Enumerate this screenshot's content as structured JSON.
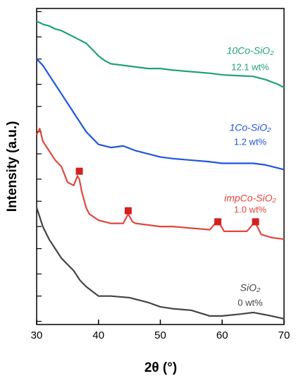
{
  "chart_data": {
    "type": "line",
    "xlabel": "2θ (°)",
    "ylabel": "Intensity (a.u.)",
    "xlim": [
      30,
      70
    ],
    "xticks": [
      30,
      40,
      50,
      60,
      70
    ],
    "ylim": [
      0,
      100
    ],
    "yticks": [
      1,
      9,
      16,
      24,
      31,
      39,
      46,
      54,
      61,
      69,
      76,
      84,
      91,
      99
    ],
    "series": [
      {
        "name": "10Co-SiO₂",
        "label": "12.1 wt%",
        "color": "#1fa372",
        "x": [
          30,
          31,
          32,
          33,
          34,
          35,
          36,
          37,
          38,
          39,
          40,
          41,
          42,
          44,
          46,
          48,
          50,
          52,
          55,
          58,
          60,
          62,
          65,
          67,
          69,
          70
        ],
        "values": [
          96,
          95,
          94.5,
          93.5,
          93,
          92,
          91,
          90,
          89,
          87,
          85,
          83.5,
          82.5,
          82,
          81.5,
          81,
          81,
          80.5,
          80,
          79.5,
          79,
          78.8,
          78.5,
          77.5,
          76,
          75
        ]
      },
      {
        "name": "1Co-SiO₂",
        "label": "1.2 wt%",
        "color": "#2255dd",
        "x": [
          30,
          31,
          32,
          33,
          34,
          35,
          36,
          37,
          38,
          39,
          40,
          42,
          44,
          46,
          48,
          50,
          52,
          55,
          58,
          60,
          62,
          65,
          67,
          69,
          70
        ],
        "values": [
          84,
          82,
          79,
          76,
          73,
          70,
          67,
          64,
          61,
          59,
          57,
          56,
          56.5,
          55,
          54,
          53,
          52.5,
          52,
          51.5,
          51,
          51,
          51,
          50.5,
          49.5,
          49
        ]
      },
      {
        "name": "impCo-SiO₂",
        "label": "1.0 wt%",
        "color": "#e0473f",
        "x": [
          30,
          30.5,
          31,
          32,
          33,
          34,
          35,
          36,
          36.6,
          36.9,
          37.3,
          38,
          38.5,
          40,
          42,
          44,
          44.8,
          45.5,
          46,
          48,
          50,
          52,
          55,
          58,
          59.3,
          60.3,
          62,
          64,
          65.3,
          66.3,
          68,
          70
        ],
        "values": [
          60,
          62,
          58,
          55,
          52,
          50,
          45,
          44,
          47,
          46,
          42,
          37,
          35,
          33,
          32,
          32,
          35,
          32.5,
          32,
          31.5,
          31,
          31,
          30.5,
          30,
          33,
          29.5,
          29.5,
          29.5,
          32.5,
          28.5,
          27.5,
          27
        ]
      },
      {
        "name": "SiO₂",
        "label": "0 wt%",
        "color": "#444444",
        "x": [
          30,
          31,
          32,
          33,
          34,
          35,
          36,
          37,
          38,
          39,
          40,
          42,
          45,
          48,
          50,
          52,
          55,
          58,
          60,
          63,
          65,
          68,
          70
        ],
        "values": [
          37,
          31,
          27,
          24,
          21,
          19,
          17,
          14,
          12,
          10.5,
          9,
          9,
          8.5,
          7,
          5.6,
          5,
          4.5,
          2.7,
          2.7,
          3.3,
          3.8,
          2.7,
          1.8
        ]
      }
    ],
    "markers": {
      "color": "#d42020",
      "x": [
        36.9,
        44.8,
        59.3,
        65.4
      ],
      "values": [
        48.5,
        36,
        32.5,
        32.5
      ]
    }
  }
}
